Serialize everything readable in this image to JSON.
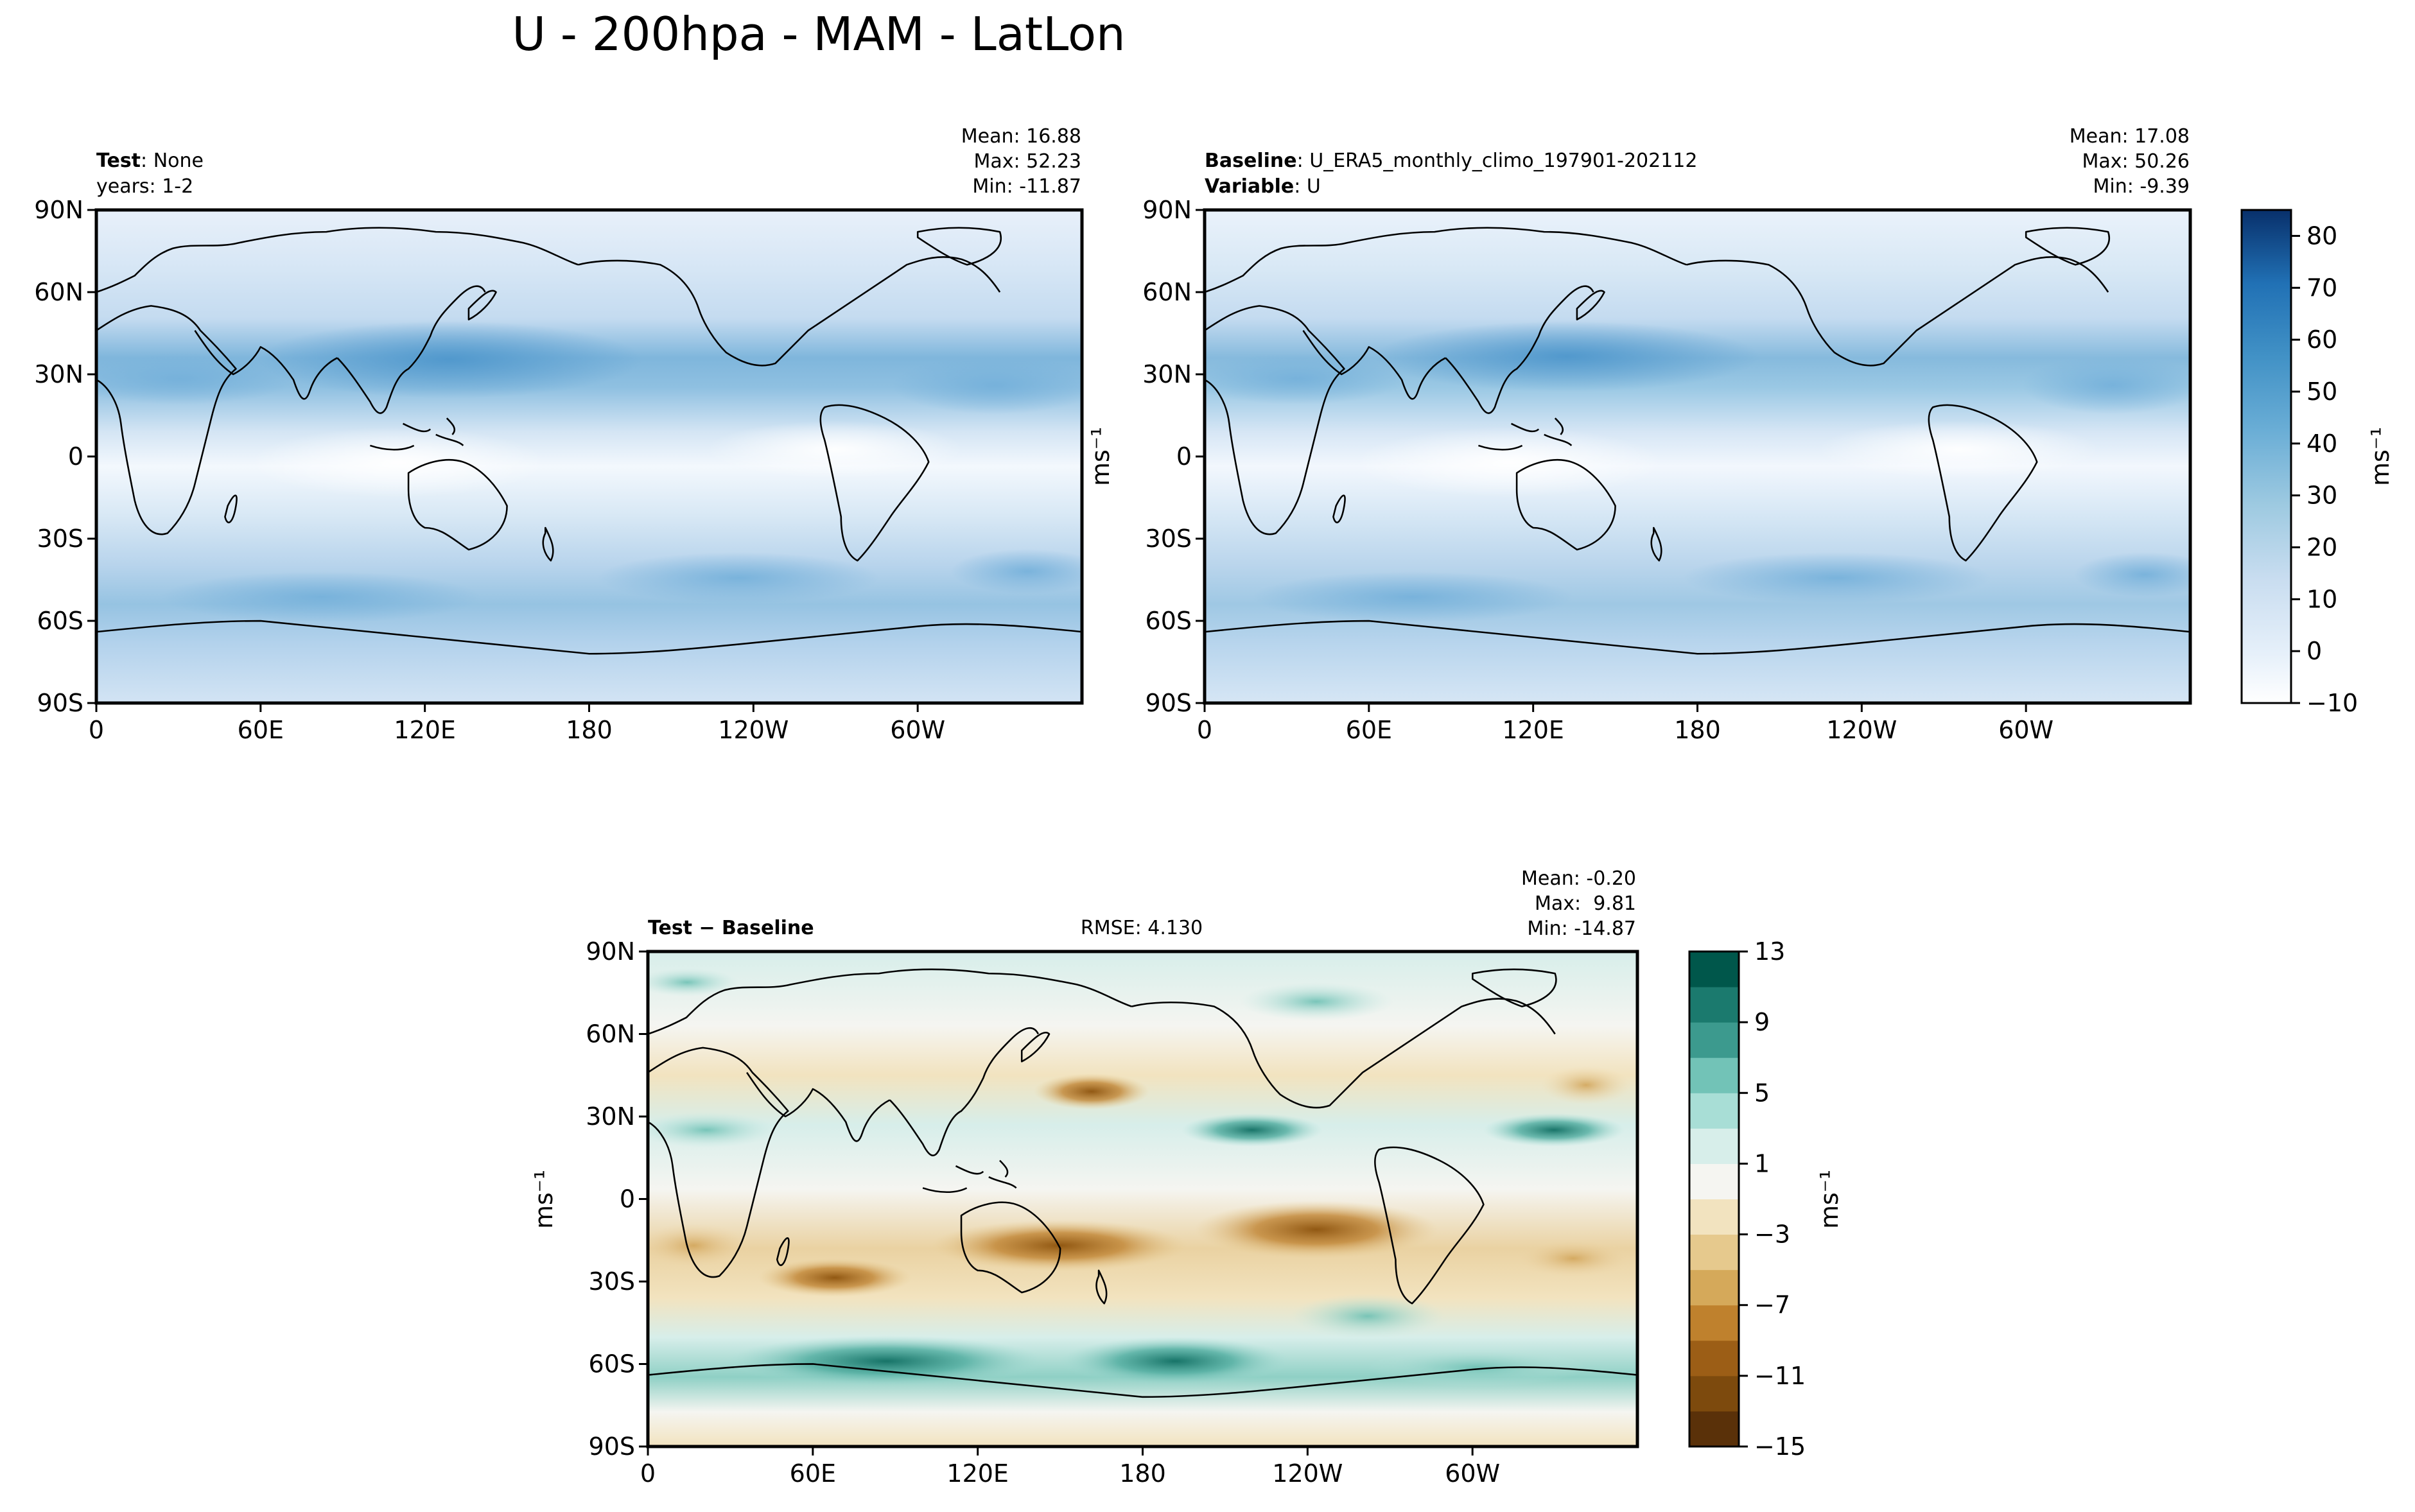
{
  "figure": {
    "title": "U - 200hpa - MAM - LatLon"
  },
  "panels": {
    "test": {
      "label_bold": "Test",
      "label_sep": ": ",
      "label_value": "None",
      "line2": "years: 1-2",
      "stats": {
        "mean": "Mean: 16.88",
        "max": "Max: 52.23",
        "min": "Min: -11.87"
      }
    },
    "baseline": {
      "label_bold": "Baseline",
      "label_sep": ": ",
      "label_value": "U_ERA5_monthly_climo_197901-202112",
      "line2_bold": "Variable",
      "line2_sep": ": ",
      "line2_value": "U",
      "stats": {
        "mean": "Mean: 17.08",
        "max": "Max: 50.26",
        "min": "Min: -9.39"
      }
    },
    "diff": {
      "label_bold": "Test − Baseline",
      "rmse": "RMSE: 4.130",
      "stats": {
        "mean": "Mean: -0.20",
        "max": "Max:  9.81",
        "min": "Min: -14.87"
      }
    }
  },
  "units": "ms⁻¹",
  "chart_data": [
    {
      "type": "heatmap",
      "name": "Test",
      "x_ticks": [
        "0",
        "60E",
        "120E",
        "180",
        "120W",
        "60W"
      ],
      "y_ticks": [
        "90N",
        "60N",
        "30N",
        "0",
        "30S",
        "60S",
        "90S"
      ],
      "xlim": [
        0,
        360
      ],
      "ylim": [
        -90,
        90
      ],
      "summary": {
        "mean": 16.88,
        "max": 52.23,
        "min": -11.87
      }
    },
    {
      "type": "heatmap",
      "name": "Baseline",
      "x_ticks": [
        "0",
        "60E",
        "120E",
        "180",
        "120W",
        "60W"
      ],
      "y_ticks": [
        "90N",
        "60N",
        "30N",
        "0",
        "30S",
        "60S",
        "90S"
      ],
      "xlim": [
        0,
        360
      ],
      "ylim": [
        -90,
        90
      ],
      "summary": {
        "mean": 17.08,
        "max": 50.26,
        "min": -9.39
      },
      "colorbar": {
        "label": "ms⁻¹",
        "ticks": [
          "−10",
          "0",
          "10",
          "20",
          "30",
          "40",
          "50",
          "60",
          "70",
          "80"
        ],
        "range": [
          -10,
          85
        ]
      }
    },
    {
      "type": "heatmap",
      "name": "Test - Baseline",
      "x_ticks": [
        "0",
        "60E",
        "120E",
        "180",
        "120W",
        "60W"
      ],
      "y_ticks": [
        "90N",
        "60N",
        "30N",
        "0",
        "30S",
        "60S",
        "90S"
      ],
      "xlim": [
        0,
        360
      ],
      "ylim": [
        -90,
        90
      ],
      "summary": {
        "mean": -0.2,
        "max": 9.81,
        "min": -14.87,
        "rmse": 4.13
      },
      "colorbar": {
        "label": "ms⁻¹",
        "ticks": [
          "13",
          "9",
          "5",
          "1",
          "−3",
          "−7",
          "−11",
          "−15"
        ],
        "range": [
          -15,
          13
        ]
      }
    }
  ],
  "colors": {
    "blues": [
      "#ffffff",
      "#f2f7fd",
      "#e3eef9",
      "#d6e6f4",
      "#c9ddf0",
      "#bad6eb",
      "#a9cde4",
      "#9ac8e0",
      "#84bcdb",
      "#6aaed6",
      "#57a0ce",
      "#4292c6",
      "#3282be",
      "#2171b5",
      "#1361a9",
      "#08519c",
      "#08458a",
      "#083a7a",
      "#08306b"
    ],
    "brbg": [
      "#5a3109",
      "#7d4a0d",
      "#9c5e16",
      "#bf812d",
      "#d5a95a",
      "#e6c98d",
      "#f2e3bf",
      "#f5f5f1",
      "#d7eeea",
      "#a8ded6",
      "#72c3b7",
      "#3c9a8e",
      "#1b7a6e",
      "#00574b"
    ]
  }
}
